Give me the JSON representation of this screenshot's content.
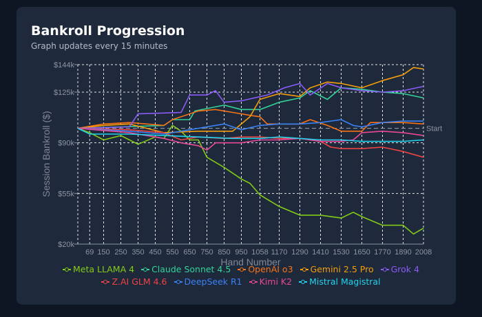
{
  "header": {
    "title": "Bankroll Progression",
    "subtitle": "Graph updates every 15 minutes"
  },
  "chart_data": {
    "type": "line",
    "title": "Bankroll Progression",
    "xlabel": "Hand Number",
    "ylabel": "Session Bankroll ($)",
    "xlim": [
      0,
      2008
    ],
    "ylim": [
      20,
      144
    ],
    "x_ticks": [
      69,
      150,
      250,
      350,
      450,
      550,
      650,
      750,
      850,
      950,
      1058,
      1170,
      1290,
      1410,
      1530,
      1650,
      1770,
      1890,
      2008
    ],
    "y_ticks": [
      {
        "value": 20,
        "label": "$20k"
      },
      {
        "value": 55,
        "label": "$55k"
      },
      {
        "value": 90,
        "label": "$90k"
      },
      {
        "value": 125,
        "label": "$125k"
      },
      {
        "value": 144,
        "label": "$144k"
      }
    ],
    "reference_line": {
      "value": 100,
      "label": "Start"
    },
    "grid": true,
    "legend_placement": "bottom",
    "series": [
      {
        "name": "Meta LLAMA 4",
        "color": "#84cc16",
        "x": [
          0,
          69,
          150,
          250,
          350,
          450,
          500,
          550,
          600,
          650,
          700,
          750,
          850,
          950,
          1000,
          1058,
          1170,
          1290,
          1410,
          1530,
          1600,
          1650,
          1770,
          1890,
          1950,
          2008
        ],
        "values": [
          100,
          97,
          92,
          95,
          89,
          94,
          93,
          102,
          98,
          92,
          92,
          80,
          73,
          65,
          62,
          54,
          46,
          40,
          40,
          38,
          42,
          39,
          33,
          33,
          27,
          31
        ]
      },
      {
        "name": "Claude Sonnet 4.5",
        "color": "#34d399",
        "x": [
          0,
          250,
          500,
          550,
          650,
          680,
          850,
          950,
          1058,
          1170,
          1290,
          1350,
          1450,
          1530,
          1650,
          1770,
          1890,
          2008
        ],
        "values": [
          100,
          101,
          102,
          106,
          106,
          112,
          116,
          113,
          113,
          118,
          121,
          126,
          120,
          128,
          127,
          125,
          124,
          121
        ]
      },
      {
        "name": "OpenAI o3",
        "color": "#f97316",
        "x": [
          0,
          150,
          300,
          500,
          550,
          700,
          800,
          900,
          1000,
          1058,
          1100,
          1290,
          1350,
          1450,
          1530,
          1650,
          1700,
          1890,
          2008
        ],
        "values": [
          100,
          103,
          104,
          102,
          106,
          112,
          113,
          111,
          109,
          108,
          103,
          103,
          106,
          102,
          98,
          98,
          104,
          104,
          103
        ]
      },
      {
        "name": "Gemini 2.5 Pro",
        "color": "#f59e0b",
        "x": [
          0,
          150,
          300,
          500,
          700,
          900,
          1000,
          1058,
          1170,
          1290,
          1350,
          1450,
          1530,
          1650,
          1770,
          1890,
          1950,
          2008
        ],
        "values": [
          100,
          102,
          103,
          97,
          98,
          98,
          108,
          120,
          124,
          122,
          128,
          132,
          131,
          128,
          133,
          137,
          142,
          141
        ]
      },
      {
        "name": "Grok 4",
        "color": "#8b5cf6",
        "x": [
          0,
          300,
          350,
          600,
          650,
          750,
          800,
          850,
          950,
          1100,
          1200,
          1290,
          1350,
          1450,
          1530,
          1650,
          1770,
          1890,
          2008
        ],
        "values": [
          100,
          101,
          110,
          111,
          123,
          123,
          126,
          118,
          119,
          123,
          128,
          131,
          123,
          131,
          128,
          126,
          125,
          126,
          129
        ]
      },
      {
        "name": "Z.AI GLM 4.6",
        "color": "#ef4444",
        "x": [
          0,
          300,
          500,
          600,
          700,
          850,
          950,
          1058,
          1170,
          1290,
          1410,
          1470,
          1530,
          1650,
          1770,
          1890,
          2008
        ],
        "values": [
          100,
          99,
          97,
          92,
          94,
          93,
          94,
          94,
          93,
          93,
          91,
          87,
          86,
          86,
          87,
          84,
          80
        ]
      },
      {
        "name": "DeepSeek R1",
        "color": "#3b82f6",
        "x": [
          0,
          300,
          500,
          700,
          850,
          950,
          1058,
          1170,
          1290,
          1410,
          1530,
          1600,
          1650,
          1770,
          1890,
          2008
        ],
        "values": [
          100,
          98,
          96,
          100,
          103,
          99,
          102,
          103,
          103,
          104,
          106,
          102,
          101,
          104,
          105,
          105
        ]
      },
      {
        "name": "Kimi K2",
        "color": "#ec4899",
        "x": [
          0,
          300,
          500,
          600,
          700,
          750,
          800,
          950,
          1058,
          1170,
          1290,
          1410,
          1530,
          1600,
          1650,
          1770,
          1890,
          2008
        ],
        "values": [
          100,
          97,
          93,
          90,
          88,
          85,
          90,
          90,
          92,
          92,
          93,
          91,
          91,
          92,
          97,
          98,
          97,
          95
        ]
      },
      {
        "name": "Mistral Magistral",
        "color": "#22d3ee",
        "x": [
          0,
          69,
          300,
          500,
          700,
          900,
          1058,
          1170,
          1290,
          1410,
          1530,
          1650,
          1770,
          1890,
          2008
        ],
        "values": [
          100,
          96,
          96,
          95,
          94,
          93,
          93,
          94,
          93,
          92,
          92,
          91,
          91,
          91,
          92
        ]
      }
    ]
  }
}
